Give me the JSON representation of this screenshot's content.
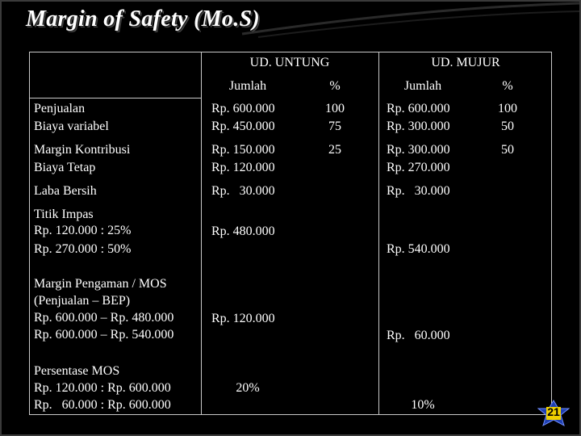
{
  "title": "Margin of Safety (Mo.S)",
  "colors": {
    "background": "#000000",
    "text": "#ffffff",
    "grid": "#c8c8c8",
    "badge": "#1e3fb0"
  },
  "table": {
    "company_a": "UD. UNTUNG",
    "company_b": "UD. MUJUR",
    "col_jumlah": "Jumlah",
    "col_pct": "%",
    "rows": {
      "r1": {
        "l1": "Penjualan",
        "l2": "Biaya variabel",
        "a1": "Rp. 600.000",
        "a2": "Rp. 450.000",
        "ap1": "100",
        "ap2": "75",
        "b1": "Rp. 600.000",
        "b2": "Rp. 300.000",
        "bp1": "100",
        "bp2": "50"
      },
      "r2": {
        "l1": "Margin Kontribusi",
        "l2": "Biaya Tetap",
        "a1": "Rp. 150.000",
        "a2": "Rp. 120.000",
        "ap1": "25",
        "b1": "Rp. 300.000",
        "b2": "Rp. 270.000",
        "bp1": "50"
      },
      "r3": {
        "l1": "Laba Bersih",
        "a1": "Rp.   30.000",
        "b1": "Rp.   30.000"
      },
      "r4": {
        "l1": "Titik Impas",
        "l2": "Rp. 120.000 : 25%",
        "l3": "Rp. 270.000 : 50%",
        "a1": "Rp. 480.000",
        "b1": "Rp. 540.000"
      },
      "r5": {
        "l1": "Margin Pengaman / MOS",
        "l2": "(Penjualan – BEP)",
        "l3": "Rp. 600.000 – Rp. 480.000",
        "l4": "Rp. 600.000 – Rp. 540.000",
        "a1": "Rp. 120.000",
        "b1": "Rp.   60.000"
      },
      "r6": {
        "l1": "Persentase MOS",
        "l2": "Rp. 120.000 : Rp. 600.000",
        "l3": "Rp.   60.000 : Rp. 600.000",
        "a1": "20%",
        "b1": "10%"
      }
    }
  },
  "page_number": "21"
}
